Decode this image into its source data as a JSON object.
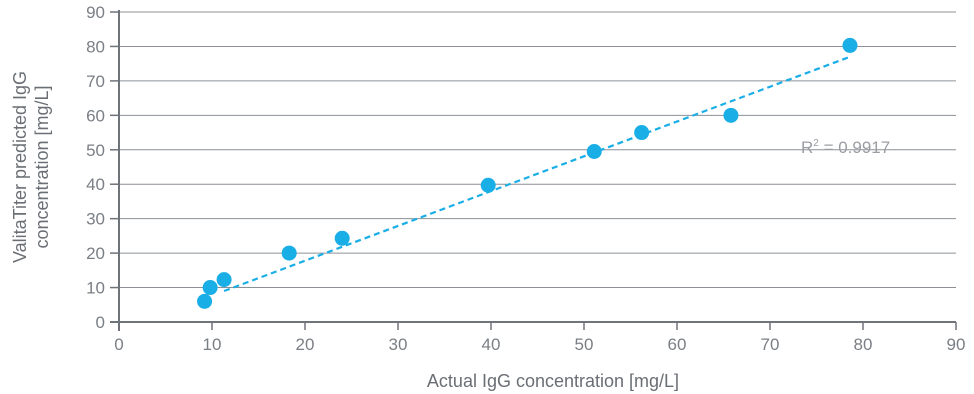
{
  "chart_data": {
    "type": "scatter",
    "xlabel": "Actual IgG concentration [mg/L]",
    "ylabel_lines": [
      "ValitaTiter predicted IgG",
      "concentration [mg/L]"
    ],
    "xlim": [
      0,
      90
    ],
    "ylim": [
      0,
      90
    ],
    "xticks": [
      0,
      10,
      20,
      30,
      40,
      50,
      60,
      70,
      80,
      90
    ],
    "yticks": [
      0,
      10,
      20,
      30,
      40,
      50,
      60,
      70,
      80,
      90
    ],
    "grid": "horizontal",
    "series": [
      {
        "points": [
          {
            "x": 9.2,
            "y": 6.0
          },
          {
            "x": 9.8,
            "y": 10.0
          },
          {
            "x": 11.3,
            "y": 12.3
          },
          {
            "x": 18.3,
            "y": 20.0
          },
          {
            "x": 24.0,
            "y": 24.3
          },
          {
            "x": 39.7,
            "y": 39.7
          },
          {
            "x": 51.1,
            "y": 49.5
          },
          {
            "x": 56.2,
            "y": 55.0
          },
          {
            "x": 65.8,
            "y": 60.0
          },
          {
            "x": 78.6,
            "y": 80.3
          }
        ]
      }
    ],
    "trendline": {
      "type": "linear",
      "x_range": [
        11.3,
        78.6
      ],
      "y_range": [
        9.0,
        77.0
      ],
      "style": "dashed",
      "label_base": "R",
      "label_exp": "2",
      "label_value": " = 0.9917"
    },
    "colors": {
      "points": "#1aaee6",
      "trendline": "#1aaee6",
      "grid": "#8c9096",
      "axis": "#6f737a"
    }
  }
}
